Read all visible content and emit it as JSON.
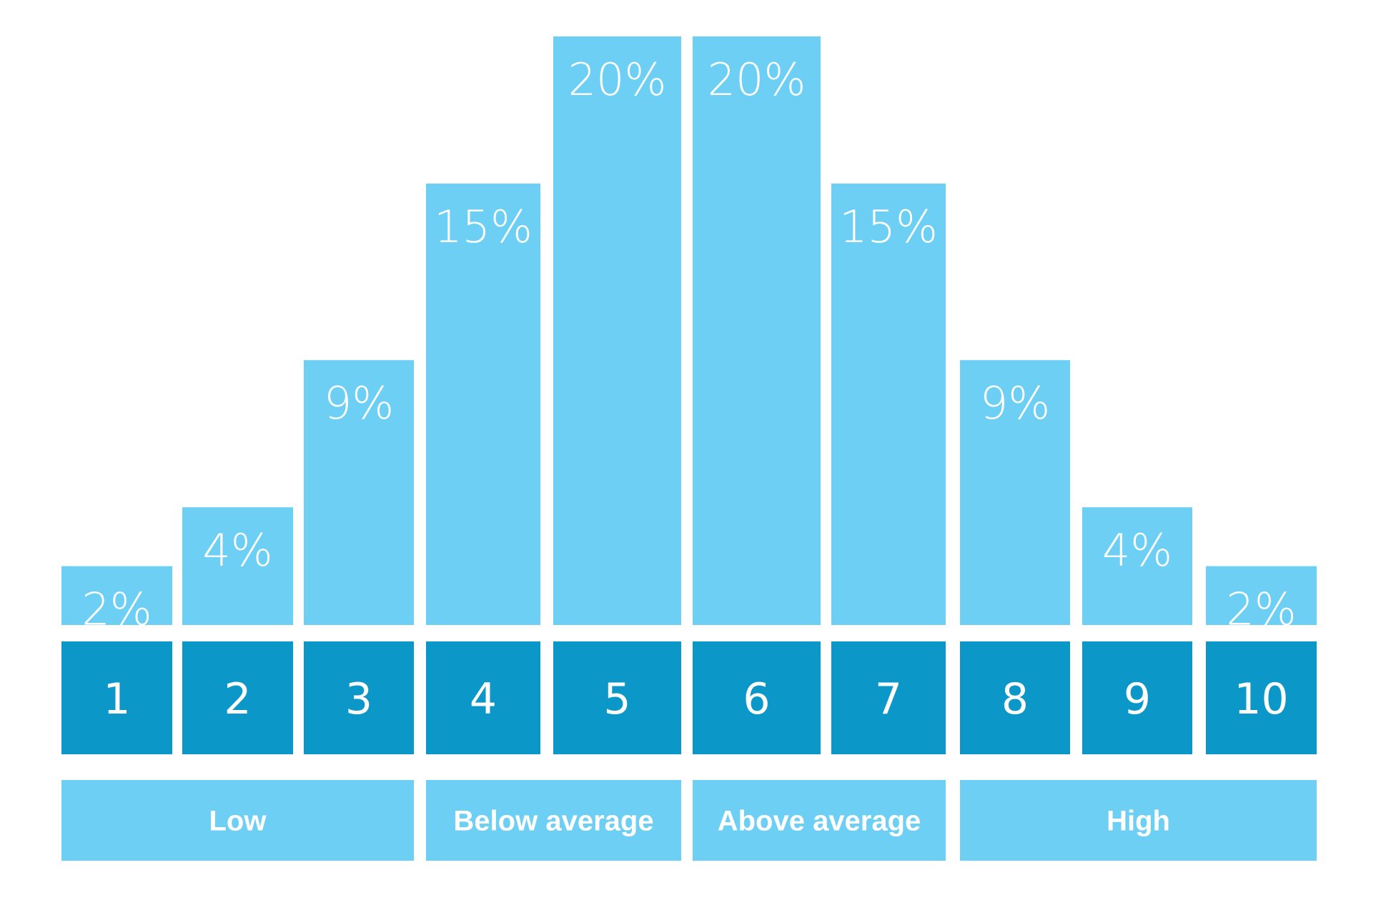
{
  "chart_data": {
    "type": "bar",
    "categories": [
      "1",
      "2",
      "3",
      "4",
      "5",
      "6",
      "7",
      "8",
      "9",
      "10"
    ],
    "values": [
      2,
      4,
      9,
      15,
      20,
      20,
      15,
      9,
      4,
      2
    ],
    "value_labels": [
      "2%",
      "4%",
      "9%",
      "15%",
      "20%",
      "20%",
      "15%",
      "9%",
      "4%",
      "2%"
    ],
    "ylim": [
      0,
      20
    ],
    "grid": false,
    "groups": [
      {
        "label": "Low",
        "from": "1",
        "to": "3"
      },
      {
        "label": "Below average",
        "from": "4",
        "to": "5"
      },
      {
        "label": "Above average",
        "from": "6",
        "to": "7"
      },
      {
        "label": "High",
        "from": "8",
        "to": "10"
      }
    ],
    "colors": {
      "bar": "#6dcff4",
      "category_box": "#0b98c8",
      "group_box": "#6dcff4",
      "text": "#ffffff"
    }
  }
}
